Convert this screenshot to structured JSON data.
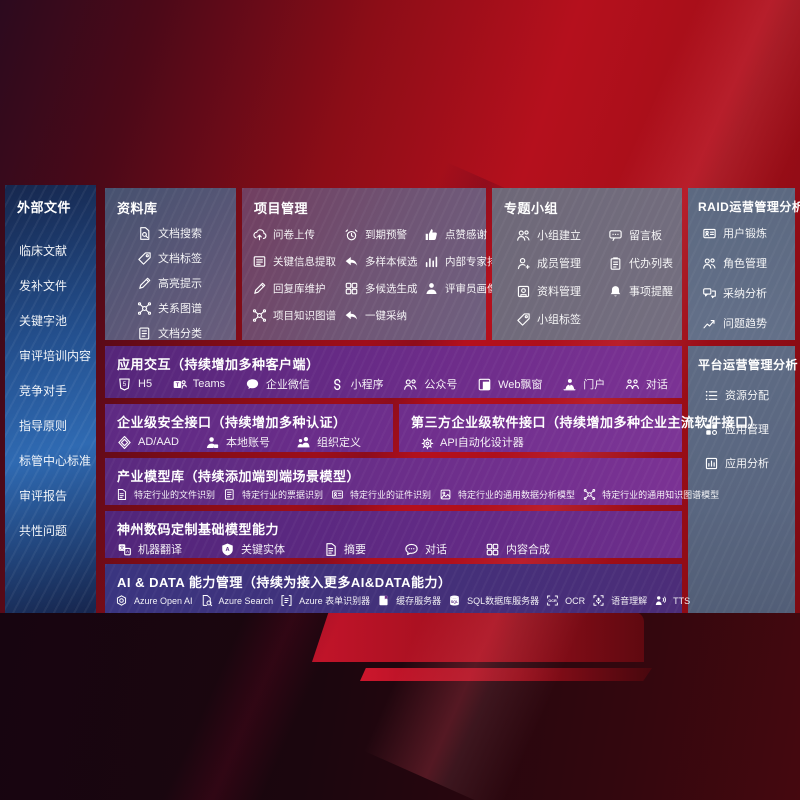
{
  "colors": {
    "bg_red_bright": "#b5101d",
    "bg_red_dark": "#2c0a1e",
    "bg_bottom_dark": "#170510",
    "sidebar_blue": "#2f6ab2",
    "panel_slate": "#46516f",
    "panel_maroon": "#713e60",
    "panel_gray_purple": "#716c7e",
    "panel_gray_blue": "#5e6b84",
    "band_purple": "#6c2c89",
    "band_indigo": "#3a3580",
    "text": "#ffffff"
  },
  "sidebar": {
    "title": "外部文件",
    "items": [
      "临床文献",
      "发补文件",
      "关键字池",
      "审评培训内容",
      "竞争对手",
      "指导原则",
      "标管中心标准",
      "审评报告",
      "共性问题"
    ]
  },
  "panels": {
    "library": {
      "title": "资料库",
      "items": [
        {
          "icon": "doc-search-icon",
          "label": "文档搜索"
        },
        {
          "icon": "tag-icon",
          "label": "文档标签"
        },
        {
          "icon": "highlight-icon",
          "label": "高亮提示"
        },
        {
          "icon": "graph-icon",
          "label": "关系图谱"
        },
        {
          "icon": "doc-category-icon",
          "label": "文档分类"
        }
      ]
    },
    "project": {
      "title": "项目管理",
      "items": [
        {
          "icon": "cloud-upload-icon",
          "label": "问卷上传"
        },
        {
          "icon": "alarm-icon",
          "label": "到期预警"
        },
        {
          "icon": "thumbs-up-icon",
          "label": "点赞感谢"
        },
        {
          "icon": "extract-icon",
          "label": "关键信息提取"
        },
        {
          "icon": "reply-icon",
          "label": "多样本候选"
        },
        {
          "icon": "rank-icon",
          "label": "内部专家排名"
        },
        {
          "icon": "edit-pen-icon",
          "label": "回复库维护"
        },
        {
          "icon": "grid-icon",
          "label": "多候选生成"
        },
        {
          "icon": "person-icon",
          "label": "评审员画像"
        },
        {
          "icon": "graph-icon",
          "label": "项目知识图谱"
        },
        {
          "icon": "adopt-arrow-icon",
          "label": "一键采纳"
        }
      ]
    },
    "group": {
      "title": "专题小组",
      "items": [
        {
          "icon": "people-icon",
          "label": "小组建立"
        },
        {
          "icon": "bbs-icon",
          "label": "留言板"
        },
        {
          "icon": "member-icon",
          "label": "成员管理"
        },
        {
          "icon": "todo-icon",
          "label": "代办列表"
        },
        {
          "icon": "album-icon",
          "label": "资料管理"
        },
        {
          "icon": "bell-icon",
          "label": "事项提醒"
        },
        {
          "icon": "tag-icon",
          "label": "小组标签"
        }
      ]
    },
    "raid": {
      "title": "RAID运营管理分析",
      "items": [
        {
          "icon": "idcard-icon",
          "label": "用户锻炼"
        },
        {
          "icon": "roles-icon",
          "label": "角色管理"
        },
        {
          "icon": "qa-icon",
          "label": "采纳分析"
        },
        {
          "icon": "trend-icon",
          "label": "问题趋势"
        }
      ]
    },
    "platform": {
      "title": "平台运营管理分析",
      "items": [
        {
          "icon": "list-icon",
          "label": "资源分配"
        },
        {
          "icon": "apps-icon",
          "label": "应用管理"
        },
        {
          "icon": "report-icon",
          "label": "应用分析"
        }
      ]
    },
    "interaction": {
      "title": "应用交互（持续增加多种客户端）",
      "items": [
        {
          "icon": "h5-icon",
          "label": "H5"
        },
        {
          "icon": "teams-icon",
          "label": "Teams"
        },
        {
          "icon": "wechat-work-icon",
          "label": "企业微信"
        },
        {
          "icon": "miniprogram-icon",
          "label": "小程序"
        },
        {
          "icon": "official-account-icon",
          "label": "公众号"
        },
        {
          "icon": "window-icon",
          "label": "Web飘窗"
        },
        {
          "icon": "portal-icon",
          "label": "门户"
        },
        {
          "icon": "dialog-icon",
          "label": "对话"
        }
      ]
    },
    "security": {
      "title": "企业级安全接口（持续增加多种认证）",
      "items": [
        {
          "icon": "ad-icon",
          "label": "AD/AAD"
        },
        {
          "icon": "account-icon",
          "label": "本地账号"
        },
        {
          "icon": "org-icon",
          "label": "组织定义"
        }
      ]
    },
    "thirdparty": {
      "title": "第三方企业级软件接口（持续增加多种企业主流软件接口）",
      "items": [
        {
          "icon": "api-gear-icon",
          "label": "API自动化设计器"
        }
      ]
    },
    "models": {
      "title": "产业模型库（持续添加端到端场景模型）",
      "items": [
        {
          "icon": "doc-file-icon",
          "label": "特定行业的文件识别"
        },
        {
          "icon": "invoice-icon",
          "label": "特定行业的票据识别"
        },
        {
          "icon": "idcard-icon",
          "label": "特定行业的证件识别"
        },
        {
          "icon": "image-model-icon",
          "label": "特定行业的通用数据分析模型"
        },
        {
          "icon": "graph-icon",
          "label": "特定行业的通用知识图谱模型"
        }
      ]
    },
    "base_models": {
      "title": "神州数码定制基础模型能力",
      "items": [
        {
          "icon": "translate-icon",
          "label": "机器翻译"
        },
        {
          "icon": "entity-icon",
          "label": "关键实体"
        },
        {
          "icon": "summary-icon",
          "label": "摘要"
        },
        {
          "icon": "chat-icon",
          "label": "对话"
        },
        {
          "icon": "compose-icon",
          "label": "内容合成"
        }
      ]
    },
    "aidata": {
      "title": "AI & DATA 能力管理（持续为接入更多AI&DATA能力）",
      "items": [
        {
          "icon": "openai-icon",
          "label": "Azure Open AI"
        },
        {
          "icon": "azure-search-icon",
          "label": "Azure Search"
        },
        {
          "icon": "form-recognizer-icon",
          "label": "Azure 表单识别器"
        },
        {
          "icon": "cache-server-icon",
          "label": "缓存服务器"
        },
        {
          "icon": "sql-db-icon",
          "label": "SQL数据库服务器"
        },
        {
          "icon": "ocr-icon",
          "label": "OCR"
        },
        {
          "icon": "speech-icon",
          "label": "语音理解"
        },
        {
          "icon": "tts-icon",
          "label": "TTS"
        }
      ]
    }
  }
}
